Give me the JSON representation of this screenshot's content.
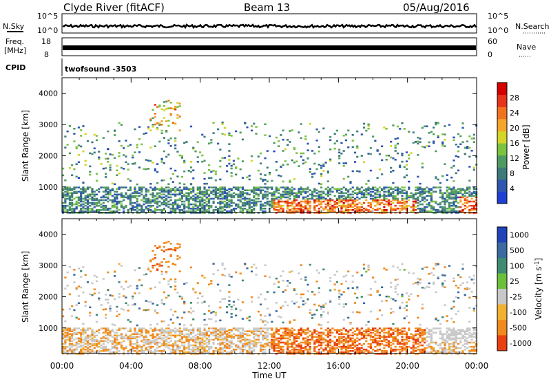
{
  "header": {
    "station": "Clyde River (fitACF)",
    "beam": "Beam 13",
    "date": "05/Aug/2016"
  },
  "cpid_label": "CPID",
  "cpid_value": "twofsound -3503",
  "colors": {
    "power": [
      "#1f3fd4",
      "#2e56b0",
      "#3d7a7a",
      "#4f9a62",
      "#7cc33f",
      "#d4d429",
      "#f4a52a",
      "#f07420",
      "#e8341a",
      "#d40000"
    ],
    "velocity_bins": [
      {
        "label": "1000",
        "color": "#2043b8"
      },
      {
        "label": "500",
        "color": "#3a6aa0"
      },
      {
        "label": "100",
        "color": "#3f8a70"
      },
      {
        "label": "25",
        "color": "#6cbf3a"
      },
      {
        "label": "-25",
        "color": "#c8c8c8"
      },
      {
        "label": "-100",
        "color": "#f0b030"
      },
      {
        "label": "-500",
        "color": "#f08a1c"
      },
      {
        "label": "-1000",
        "color": "#e84010"
      }
    ]
  },
  "chart_data": [
    {
      "type": "line",
      "name": "noise",
      "left_label": "N.Sky",
      "right_label": "N.Search",
      "left_ticks": [
        "10^5",
        "10^0"
      ],
      "right_ticks": [
        "10^5",
        "10^0"
      ]
    },
    {
      "type": "line",
      "name": "frequency",
      "left_label_1": "Freq.",
      "left_label_2": "[MHz]",
      "left_ticks": [
        "18",
        "8"
      ],
      "right_label": "Nave",
      "right_ticks": [
        "60",
        "0"
      ]
    },
    {
      "type": "heatmap",
      "name": "power",
      "ylabel": "Slant Range [km]",
      "yticks": [
        1000,
        2000,
        3000,
        4000
      ],
      "ylim": [
        180,
        4500
      ],
      "xlim": [
        0,
        24
      ],
      "colorbar_label": "Power [dB]",
      "colorbar_ticks": [
        4,
        8,
        12,
        16,
        20,
        24,
        28
      ],
      "colorbar_range": [
        0,
        32
      ]
    },
    {
      "type": "heatmap",
      "name": "velocity",
      "ylabel": "Slant Range [km]",
      "yticks": [
        1000,
        2000,
        3000,
        4000
      ],
      "ylim": [
        180,
        4500
      ],
      "xlim": [
        0,
        24
      ],
      "colorbar_label": "Velocity [m s",
      "colorbar_label_sup": "-1",
      "colorbar_label_end": "]"
    }
  ],
  "x_axis": {
    "label": "Time UT",
    "ticks": [
      "00:00",
      "04:00",
      "08:00",
      "12:00",
      "16:00",
      "20:00",
      "00:00"
    ],
    "tick_hours": [
      0,
      4,
      8,
      12,
      16,
      20,
      24
    ]
  }
}
